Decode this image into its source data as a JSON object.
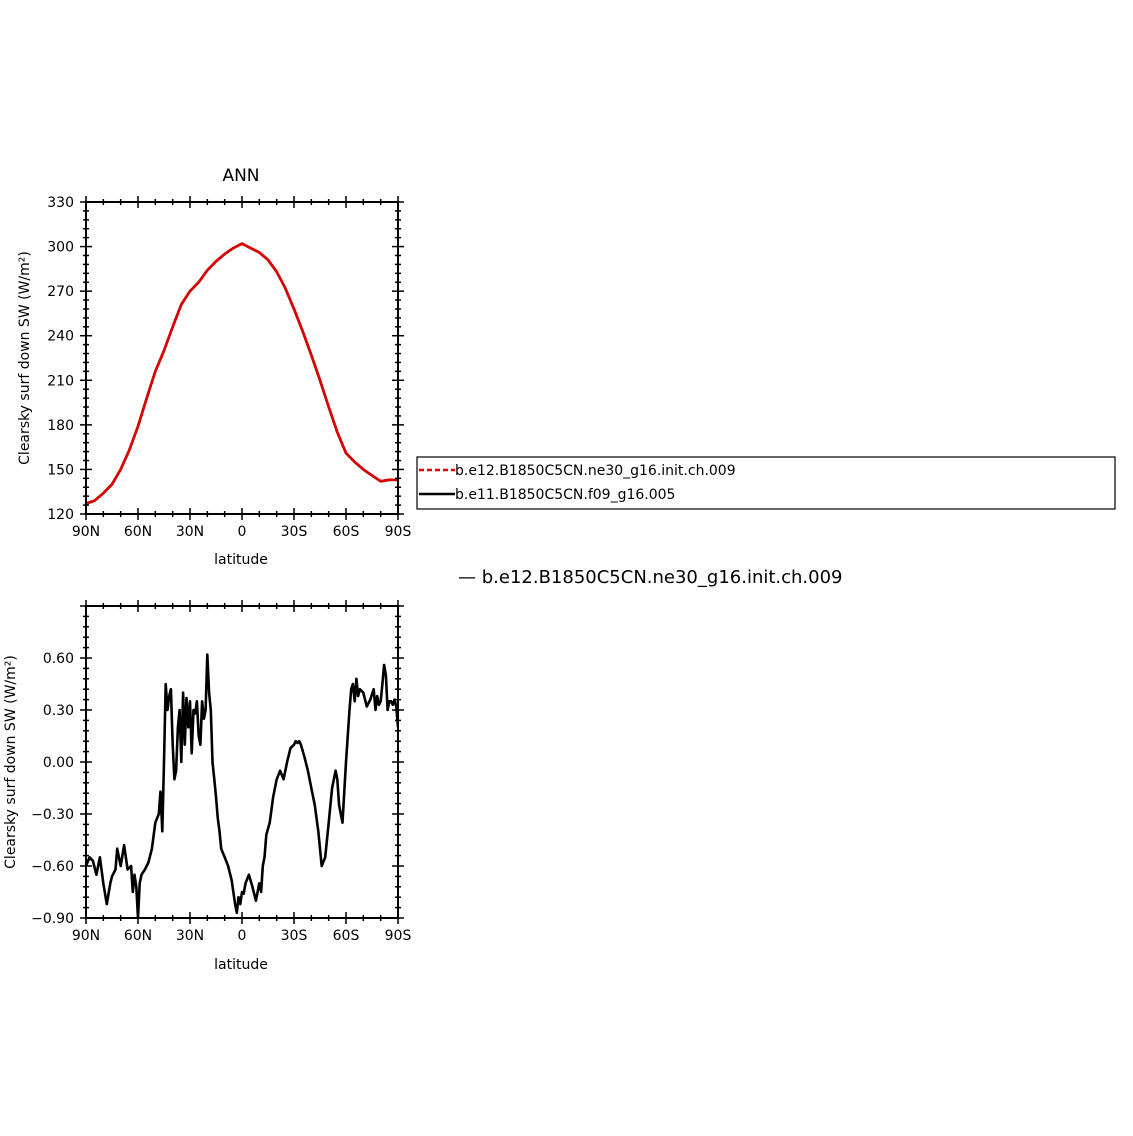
{
  "chart_data": [
    {
      "type": "line",
      "title": "ANN",
      "xlabel": "latitude",
      "ylabel": "Clearsky surf down SW (W/m²)",
      "xlim": [
        90,
        -90
      ],
      "ylim": [
        120,
        330
      ],
      "x_ticks": [
        90,
        60,
        30,
        0,
        -30,
        -60,
        -90
      ],
      "x_tick_labels": [
        "90N",
        "60N",
        "30N",
        "0",
        "30S",
        "60S",
        "90S"
      ],
      "y_ticks": [
        120,
        150,
        180,
        210,
        240,
        270,
        300,
        330
      ],
      "y_tick_labels": [
        "120",
        "150",
        "180",
        "210",
        "240",
        "270",
        "300",
        "330"
      ],
      "legend": "right",
      "series": [
        {
          "name": "b.e12.B1850C5CN.ne30_g16.init.ch.009",
          "color": "#e00000",
          "dash": "dashed",
          "x": [
            90,
            85,
            80,
            75,
            70,
            65,
            60,
            55,
            50,
            45,
            40,
            35,
            30,
            25,
            20,
            15,
            10,
            5,
            0,
            -5,
            -10,
            -15,
            -20,
            -25,
            -30,
            -35,
            -40,
            -45,
            -50,
            -55,
            -60,
            -65,
            -70,
            -75,
            -80,
            -85,
            -90
          ],
          "y": [
            127,
            129,
            134,
            140,
            150,
            163,
            179,
            198,
            216,
            230,
            246,
            261,
            270,
            276,
            284,
            290,
            295,
            299,
            302,
            299,
            296,
            291,
            283,
            272,
            258,
            243,
            227,
            210,
            192,
            175,
            161,
            155,
            150,
            146,
            142,
            143,
            143
          ]
        },
        {
          "name": "b.e11.B1850C5CN.f09_g16.005",
          "color": "#000000",
          "dash": "solid",
          "x": [
            90,
            85,
            80,
            75,
            70,
            65,
            60,
            55,
            50,
            45,
            40,
            35,
            30,
            25,
            20,
            15,
            10,
            5,
            0,
            -5,
            -10,
            -15,
            -20,
            -25,
            -30,
            -35,
            -40,
            -45,
            -50,
            -55,
            -60,
            -65,
            -70,
            -75,
            -80,
            -85,
            -90
          ],
          "y": [
            127,
            129,
            134,
            140,
            150,
            163,
            179,
            198,
            216,
            230,
            246,
            261,
            270,
            276,
            284,
            290,
            295,
            299,
            302,
            299,
            296,
            291,
            283,
            272,
            258,
            243,
            227,
            210,
            192,
            175,
            161,
            155,
            150,
            146,
            142,
            143,
            143
          ]
        }
      ]
    },
    {
      "type": "line",
      "title": "",
      "xlabel": "latitude",
      "ylabel": "Clearsky surf down SW (W/m²)",
      "xlim": [
        90,
        -90
      ],
      "ylim": [
        -0.9,
        0.9
      ],
      "x_ticks": [
        90,
        60,
        30,
        0,
        -30,
        -60,
        -90
      ],
      "x_tick_labels": [
        "90N",
        "60N",
        "30N",
        "0",
        "30S",
        "60S",
        "90S"
      ],
      "y_ticks": [
        -0.9,
        -0.6,
        -0.3,
        0.0,
        0.3,
        0.6
      ],
      "y_tick_labels": [
        "−0.90",
        "−0.60",
        "−0.30",
        "0.00",
        "0.30",
        "0.60"
      ],
      "legend": "none",
      "series": [
        {
          "color": "#000000",
          "x": [
            90,
            88,
            86,
            84,
            82,
            80,
            78,
            76,
            75,
            73,
            72,
            70,
            68,
            66,
            64,
            63,
            62,
            61,
            60,
            59,
            58,
            56,
            54,
            52,
            50,
            48,
            47,
            46,
            45,
            44,
            43,
            42,
            41,
            40,
            39,
            38,
            37,
            36,
            35,
            34,
            33,
            32,
            31,
            30,
            29,
            28,
            27,
            26,
            25,
            24,
            23,
            22,
            21,
            20,
            19,
            18,
            17,
            16,
            15,
            14,
            13,
            12,
            10,
            8,
            6,
            4,
            3,
            2,
            1,
            0,
            -1,
            -2,
            -4,
            -6,
            -8,
            -10,
            -11,
            -12,
            -13,
            -14,
            -16,
            -18,
            -20,
            -22,
            -24,
            -26,
            -28,
            -30,
            -31,
            -32,
            -33,
            -34,
            -36,
            -38,
            -40,
            -42,
            -44,
            -46,
            -48,
            -50,
            -52,
            -54,
            -55,
            -56,
            -58,
            -60,
            -62,
            -63,
            -64,
            -65,
            -66,
            -67,
            -68,
            -70,
            -72,
            -74,
            -76,
            -77,
            -78,
            -79,
            -80,
            -81,
            -82,
            -83,
            -84,
            -85,
            -86,
            -87,
            -88,
            -89,
            -90
          ],
          "y": [
            -0.6,
            -0.55,
            -0.57,
            -0.65,
            -0.55,
            -0.7,
            -0.82,
            -0.7,
            -0.66,
            -0.62,
            -0.5,
            -0.6,
            -0.48,
            -0.62,
            -0.6,
            -0.75,
            -0.65,
            -0.72,
            -0.9,
            -0.7,
            -0.65,
            -0.62,
            -0.58,
            -0.5,
            -0.35,
            -0.3,
            -0.17,
            -0.4,
            0.0,
            0.45,
            0.3,
            0.38,
            0.42,
            0.1,
            -0.1,
            -0.05,
            0.2,
            0.3,
            0.0,
            0.4,
            0.1,
            0.37,
            0.2,
            0.35,
            0.05,
            0.3,
            0.28,
            0.35,
            0.15,
            0.1,
            0.35,
            0.25,
            0.3,
            0.62,
            0.4,
            0.3,
            0.0,
            -0.1,
            -0.2,
            -0.32,
            -0.4,
            -0.5,
            -0.55,
            -0.6,
            -0.68,
            -0.82,
            -0.87,
            -0.78,
            -0.82,
            -0.75,
            -0.76,
            -0.7,
            -0.65,
            -0.72,
            -0.8,
            -0.7,
            -0.75,
            -0.6,
            -0.55,
            -0.42,
            -0.35,
            -0.2,
            -0.1,
            -0.05,
            -0.1,
            0.0,
            0.08,
            0.1,
            0.12,
            0.11,
            0.12,
            0.1,
            0.03,
            -0.05,
            -0.15,
            -0.25,
            -0.4,
            -0.6,
            -0.55,
            -0.35,
            -0.15,
            -0.05,
            -0.1,
            -0.25,
            -0.35,
            0.0,
            0.3,
            0.42,
            0.45,
            0.35,
            0.48,
            0.38,
            0.42,
            0.4,
            0.32,
            0.36,
            0.42,
            0.3,
            0.38,
            0.33,
            0.35,
            0.45,
            0.56,
            0.5,
            0.3,
            0.35,
            0.35,
            0.33,
            0.36,
            0.32,
            0.2
          ]
        }
      ]
    }
  ],
  "note_text": "— b.e12.B1850C5CN.ne30_g16.init.ch.009"
}
